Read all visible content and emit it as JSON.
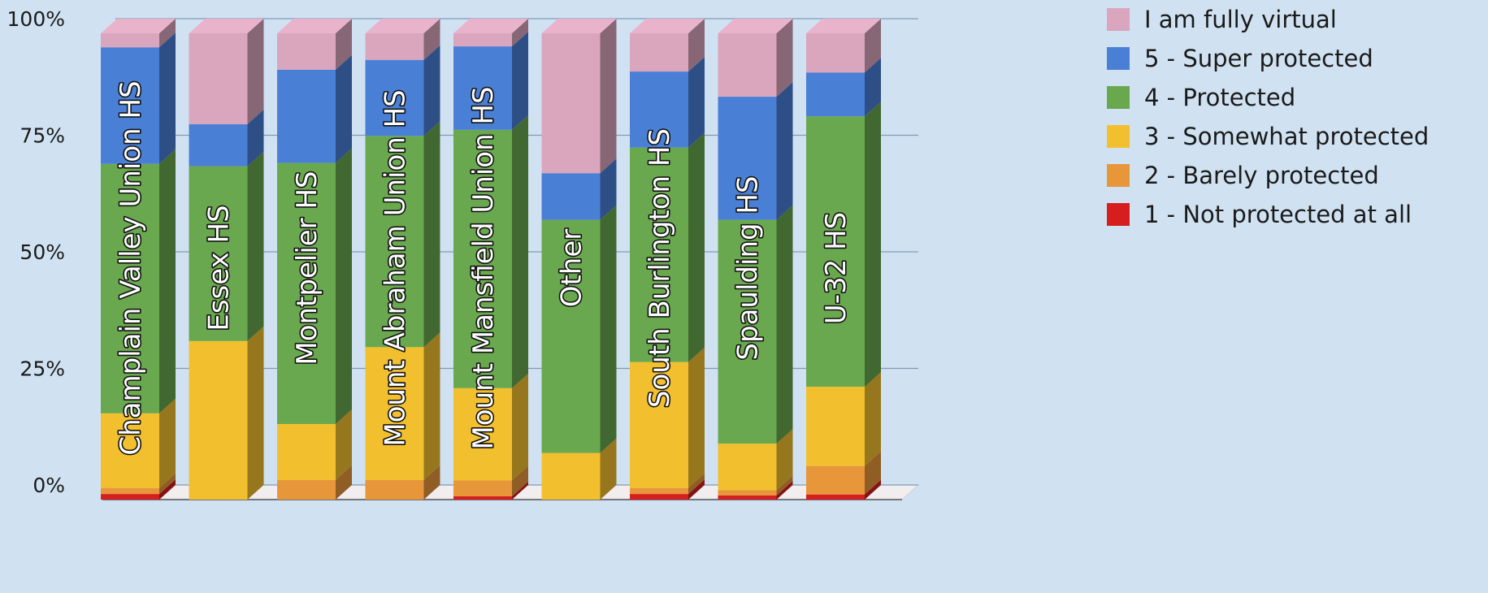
{
  "chart_data": {
    "type": "bar",
    "stacked": true,
    "percent_stacked": true,
    "three_d": true,
    "title": "",
    "xlabel": "",
    "ylabel": "",
    "ylim": [
      0,
      100
    ],
    "yticks": [
      "0%",
      "25%",
      "50%",
      "75%",
      "100%"
    ],
    "grid": true,
    "legend_position": "right",
    "categories": [
      "Champlain Valley Union HS",
      "Essex HS",
      "Montpelier HS",
      "Mount Abraham Union HS",
      "Mount Mansfield Union HS",
      "Other",
      "South Burlington HS",
      "Spaulding HS",
      "U-32 HS"
    ],
    "series": [
      {
        "name": "1 - Not protected at all",
        "color": "#d61e1e",
        "values": [
          1.2,
          0,
          0,
          0,
          0.7,
          0,
          1.2,
          0.9,
          1.1
        ]
      },
      {
        "name": "2 - Barely protected",
        "color": "#e8963a",
        "values": [
          1.3,
          0,
          4.2,
          4.2,
          3.4,
          0,
          1.3,
          1.1,
          6.1
        ]
      },
      {
        "name": "3 - Somewhat protected",
        "color": "#f2c02e",
        "values": [
          16,
          34,
          12,
          28.5,
          19.8,
          10,
          27,
          10,
          17
        ]
      },
      {
        "name": "4 - Protected",
        "color": "#6aa84f",
        "values": [
          53.5,
          37.5,
          56,
          45.3,
          55.4,
          50,
          46,
          48,
          58
        ]
      },
      {
        "name": "5 - Super protected",
        "color": "#4a7fd6",
        "values": [
          25,
          9,
          20,
          16.3,
          17.9,
          10,
          16.3,
          26.4,
          9.4
        ]
      },
      {
        "name": "I am fully virtual",
        "color": "#d9a6bd",
        "values": [
          3,
          19.5,
          7.8,
          5.7,
          2.8,
          30,
          8.2,
          13.6,
          8.4
        ]
      }
    ]
  }
}
